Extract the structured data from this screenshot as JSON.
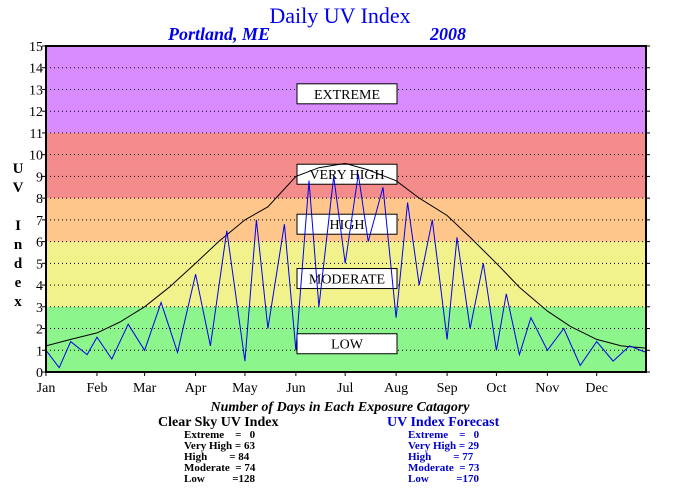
{
  "title": "Daily UV Index",
  "location": "Portland, ME",
  "year": "2008",
  "ylabel": "UV Index",
  "subtitle": "Number of Days in Each Exposure Catagory",
  "colors": {
    "extreme": "#d88cff",
    "very_high": "#f58c8c",
    "high": "#ffc68c",
    "moderate": "#f2f28c",
    "low": "#8cf58c",
    "clear_sky_line": "#000000",
    "forecast_line": "#0000ee"
  },
  "chart_data": {
    "type": "line",
    "title": "Daily UV Index",
    "ylabel": "UV Index",
    "ylim": [
      0,
      15
    ],
    "yticks": [
      0,
      1,
      2,
      3,
      4,
      5,
      6,
      7,
      8,
      9,
      10,
      11,
      12,
      13,
      14,
      15
    ],
    "xlabels": [
      "Jan",
      "Feb",
      "Mar",
      "Apr",
      "May",
      "Jun",
      "Jul",
      "Aug",
      "Sep",
      "Oct",
      "Nov",
      "Dec"
    ],
    "grid": true,
    "bands": [
      {
        "label": "LOW",
        "from": 0,
        "to": 3,
        "color": "#8cf58c"
      },
      {
        "label": "MODERATE",
        "from": 3,
        "to": 6,
        "color": "#f2f28c"
      },
      {
        "label": "HIGH",
        "from": 6,
        "to": 8,
        "color": "#ffc68c"
      },
      {
        "label": "VERY HIGH",
        "from": 8,
        "to": 11,
        "color": "#f58c8c"
      },
      {
        "label": "EXTREME",
        "from": 11,
        "to": 15,
        "color": "#d88cff"
      }
    ],
    "series": [
      {
        "color": "#000000",
        "x": [
          0,
          15,
          31,
          45,
          60,
          75,
          91,
          105,
          121,
          135,
          152,
          166,
          182,
          196,
          213,
          227,
          244,
          258,
          274,
          288,
          305,
          319,
          335,
          350,
          365
        ],
        "values": [
          1.2,
          1.5,
          1.8,
          2.3,
          3.0,
          3.9,
          5.0,
          6.0,
          7.0,
          7.6,
          9.0,
          9.4,
          9.6,
          9.3,
          8.8,
          8.0,
          7.2,
          6.2,
          5.0,
          3.9,
          2.8,
          2.1,
          1.5,
          1.2,
          1.1
        ]
      },
      {
        "color": "#0000ee",
        "x": [
          0,
          8,
          15,
          25,
          31,
          40,
          50,
          60,
          70,
          80,
          91,
          100,
          110,
          121,
          128,
          135,
          145,
          152,
          160,
          166,
          175,
          182,
          190,
          196,
          205,
          213,
          220,
          227,
          235,
          244,
          250,
          258,
          266,
          274,
          280,
          288,
          295,
          305,
          315,
          325,
          335,
          345,
          355,
          365
        ],
        "values": [
          1.0,
          0.2,
          1.4,
          0.8,
          1.6,
          0.6,
          2.2,
          1.0,
          3.2,
          0.9,
          4.5,
          1.2,
          6.5,
          0.5,
          7.0,
          2.0,
          6.8,
          1.0,
          8.8,
          3.0,
          9.0,
          5.0,
          9.1,
          6.0,
          8.5,
          2.5,
          7.8,
          4.0,
          7.0,
          1.5,
          6.2,
          2.0,
          5.0,
          1.0,
          3.6,
          0.8,
          2.5,
          1.0,
          2.0,
          0.3,
          1.4,
          0.5,
          1.2,
          0.9
        ]
      }
    ]
  },
  "clear_sky": {
    "title": "Clear Sky UV Index",
    "rows": [
      "Extreme    =   0",
      "Very High = 63",
      "High        = 84",
      "Moderate  = 74",
      "Low          =128"
    ]
  },
  "forecast": {
    "title": "UV Index Forecast",
    "rows": [
      "Extreme    =   0",
      "Very High = 29",
      "High        = 77",
      "Moderate  = 73",
      "Low          =170"
    ]
  }
}
